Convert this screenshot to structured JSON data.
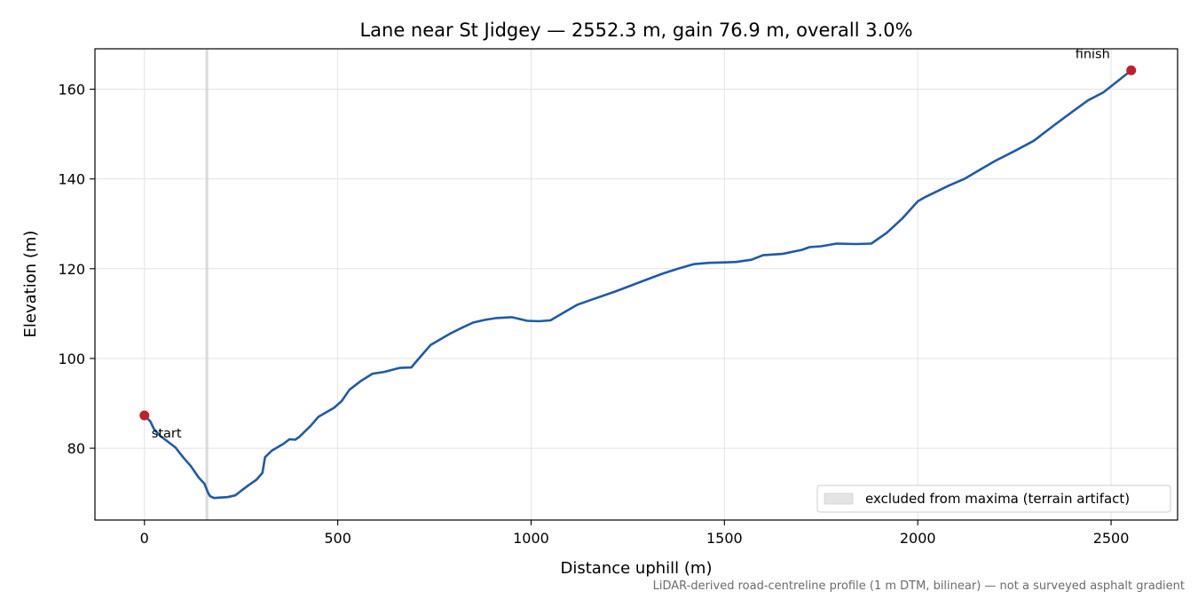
{
  "chart_data": {
    "type": "line",
    "title": "Lane near St Jidgey — 2552.3 m, gain 76.9 m, overall 3.0%",
    "xlabel": "Distance uphill (m)",
    "ylabel": "Elevation (m)",
    "xlim": [
      -128,
      2672
    ],
    "ylim": [
      64,
      169
    ],
    "xticks": [
      0,
      500,
      1000,
      1500,
      2000,
      2500
    ],
    "yticks": [
      80,
      100,
      120,
      140,
      160
    ],
    "grid": true,
    "legend": {
      "position": "bottom-right",
      "label": "excluded from maxima (terrain artifact)"
    },
    "excluded_region": {
      "x_start": 158,
      "x_end": 165
    },
    "series": [
      {
        "color": "#1f5aa8",
        "x": [
          0,
          15,
          25,
          40,
          60,
          80,
          100,
          120,
          140,
          155,
          165,
          170,
          180,
          195,
          215,
          235,
          250,
          270,
          290,
          305,
          312,
          330,
          360,
          375,
          390,
          400,
          430,
          450,
          470,
          490,
          510,
          530,
          560,
          590,
          620,
          660,
          690,
          710,
          740,
          760,
          790,
          820,
          850,
          880,
          910,
          950,
          990,
          1020,
          1050,
          1080,
          1120,
          1160,
          1220,
          1260,
          1300,
          1340,
          1380,
          1420,
          1460,
          1500,
          1530,
          1570,
          1600,
          1650,
          1700,
          1720,
          1750,
          1790,
          1840,
          1880,
          1920,
          1960,
          2000,
          2020,
          2080,
          2120,
          2160,
          2200,
          2250,
          2300,
          2350,
          2400,
          2440,
          2480,
          2520,
          2552
        ],
        "y": [
          87.3,
          86.0,
          84.2,
          82.8,
          81.5,
          80.2,
          78.0,
          76.0,
          73.5,
          72.1,
          70.0,
          69.3,
          68.9,
          69.0,
          69.1,
          69.5,
          70.5,
          71.8,
          73.0,
          74.5,
          78.0,
          79.5,
          81.0,
          82.0,
          81.9,
          82.5,
          85.0,
          87.0,
          88.0,
          89.0,
          90.5,
          93.0,
          95.0,
          96.6,
          97.0,
          97.9,
          98.0,
          100.0,
          103.0,
          104.0,
          105.5,
          106.8,
          108.0,
          108.6,
          109.0,
          109.2,
          108.4,
          108.3,
          108.5,
          110.0,
          112.0,
          113.2,
          115.0,
          116.3,
          117.6,
          118.9,
          120.0,
          121.0,
          121.3,
          121.4,
          121.5,
          122.0,
          123.0,
          123.3,
          124.2,
          124.8,
          125.0,
          125.6,
          125.5,
          125.6,
          128.0,
          131.2,
          135.0,
          136.0,
          138.5,
          140.0,
          142.0,
          144.0,
          146.2,
          148.5,
          151.8,
          155.0,
          157.5,
          159.3,
          162.0,
          164.2
        ]
      }
    ],
    "annotations": [
      {
        "label": "start",
        "x": 0,
        "y": 87.3
      },
      {
        "label": "finish",
        "x": 2552,
        "y": 164.2
      }
    ],
    "marker_color": "#c0202a",
    "footer": "LiDAR-derived road-centreline profile (1 m DTM, bilinear) — not a surveyed asphalt gradient"
  }
}
